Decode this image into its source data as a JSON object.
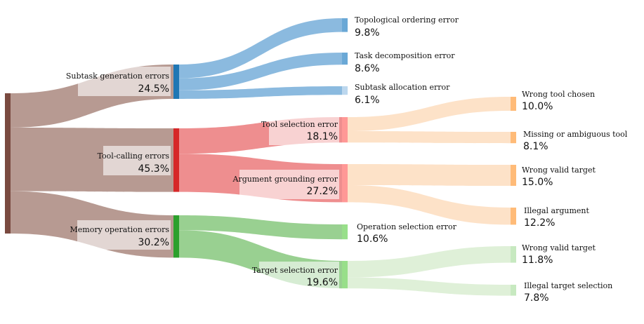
{
  "chart_data": {
    "type": "sankey",
    "title": "",
    "nodes": [
      {
        "id": "root",
        "label": "",
        "value": 100.0,
        "color": "#7a4a40"
      },
      {
        "id": "subtask",
        "label": "Subtask generation errors",
        "pct": "24.5%",
        "value": 24.5,
        "color": "#1f77b4"
      },
      {
        "id": "toolcall",
        "label": "Tool-calling errors",
        "pct": "45.3%",
        "value": 45.3,
        "color": "#d62728"
      },
      {
        "id": "memory",
        "label": "Memory operation errors",
        "pct": "30.2%",
        "value": 30.2,
        "color": "#2ca02c"
      },
      {
        "id": "topo",
        "label": "Topological ordering error",
        "pct": "9.8%",
        "value": 9.8,
        "color": "#6aa8d6"
      },
      {
        "id": "decomp",
        "label": "Task decomposition error",
        "pct": "8.6%",
        "value": 8.6,
        "color": "#6aa8d6"
      },
      {
        "id": "alloc",
        "label": "Subtask allocation error",
        "pct": "6.1%",
        "value": 6.1,
        "color": "#bcd7ee"
      },
      {
        "id": "toolsel",
        "label": "Tool selection error",
        "pct": "18.1%",
        "value": 18.1,
        "color": "#ff9896"
      },
      {
        "id": "arggr",
        "label": "Argument grounding error",
        "pct": "27.2%",
        "value": 27.2,
        "color": "#ff9896"
      },
      {
        "id": "opsel",
        "label": "Operation selection error",
        "pct": "10.6%",
        "value": 10.6,
        "color": "#98df8a"
      },
      {
        "id": "targsel",
        "label": "Target selection error",
        "pct": "19.6%",
        "value": 19.6,
        "color": "#98df8a"
      },
      {
        "id": "wrongtool",
        "label": "Wrong tool chosen",
        "pct": "10.0%",
        "value": 10.0,
        "color": "#ffbb78"
      },
      {
        "id": "missing",
        "label": "Missing or ambiguous tool",
        "pct": "8.1%",
        "value": 8.1,
        "color": "#ffbb78"
      },
      {
        "id": "wvt1",
        "label": "Wrong valid target",
        "pct": "15.0%",
        "value": 15.0,
        "color": "#ffbb78"
      },
      {
        "id": "illarg",
        "label": "Illegal argument",
        "pct": "12.2%",
        "value": 12.2,
        "color": "#ffbb78"
      },
      {
        "id": "wvt2",
        "label": "Wrong valid target",
        "pct": "11.8%",
        "value": 11.8,
        "color": "#c7e9c0"
      },
      {
        "id": "illtarg",
        "label": "Illegal target selection",
        "pct": "7.8%",
        "value": 7.8,
        "color": "#c7e9c0"
      }
    ],
    "links": [
      {
        "source": "root",
        "target": "subtask",
        "value": 24.5,
        "color": "#b79a92"
      },
      {
        "source": "root",
        "target": "toolcall",
        "value": 45.3,
        "color": "#b79a92"
      },
      {
        "source": "root",
        "target": "memory",
        "value": 30.2,
        "color": "#b79a92"
      },
      {
        "source": "subtask",
        "target": "topo",
        "value": 9.8,
        "color": "#8bbadf"
      },
      {
        "source": "subtask",
        "target": "decomp",
        "value": 8.6,
        "color": "#8bbadf"
      },
      {
        "source": "subtask",
        "target": "alloc",
        "value": 6.1,
        "color": "#8bbadf"
      },
      {
        "source": "toolcall",
        "target": "toolsel",
        "value": 18.1,
        "color": "#ee8e8f"
      },
      {
        "source": "toolcall",
        "target": "arggr",
        "value": 27.2,
        "color": "#ee8e8f"
      },
      {
        "source": "memory",
        "target": "opsel",
        "value": 10.6,
        "color": "#99d091"
      },
      {
        "source": "memory",
        "target": "targsel",
        "value": 19.6,
        "color": "#99d091"
      },
      {
        "source": "toolsel",
        "target": "wrongtool",
        "value": 10.0,
        "color": "#fde2c8"
      },
      {
        "source": "toolsel",
        "target": "missing",
        "value": 8.1,
        "color": "#fde2c8"
      },
      {
        "source": "arggr",
        "target": "wvt1",
        "value": 15.0,
        "color": "#fde2c8"
      },
      {
        "source": "arggr",
        "target": "illarg",
        "value": 12.2,
        "color": "#fde2c8"
      },
      {
        "source": "targsel",
        "target": "wvt2",
        "value": 11.8,
        "color": "#dff0d8"
      },
      {
        "source": "targsel",
        "target": "illtarg",
        "value": 7.8,
        "color": "#dff0d8"
      }
    ]
  }
}
